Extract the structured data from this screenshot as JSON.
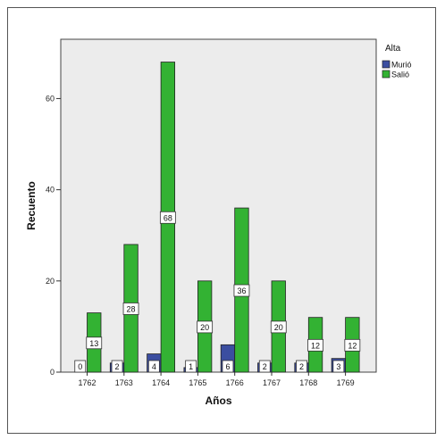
{
  "chart_data": {
    "type": "bar",
    "categories": [
      "1762",
      "1763",
      "1764",
      "1765",
      "1766",
      "1767",
      "1768",
      "1769"
    ],
    "series": [
      {
        "name": "Murió",
        "color": "#3b4ea0",
        "values": [
          0,
          2,
          4,
          1,
          6,
          2,
          2,
          3
        ]
      },
      {
        "name": "Salió",
        "color": "#33b233",
        "values": [
          13,
          28,
          68,
          20,
          36,
          20,
          12,
          12
        ]
      }
    ],
    "xlabel": "Años",
    "ylabel": "Recuento",
    "ylim": [
      0,
      73
    ],
    "yticks": [
      0,
      20,
      40,
      60
    ],
    "legend": {
      "title": "Alta",
      "placement": "top-right"
    },
    "grid": false,
    "plot_background": "#ececec"
  }
}
